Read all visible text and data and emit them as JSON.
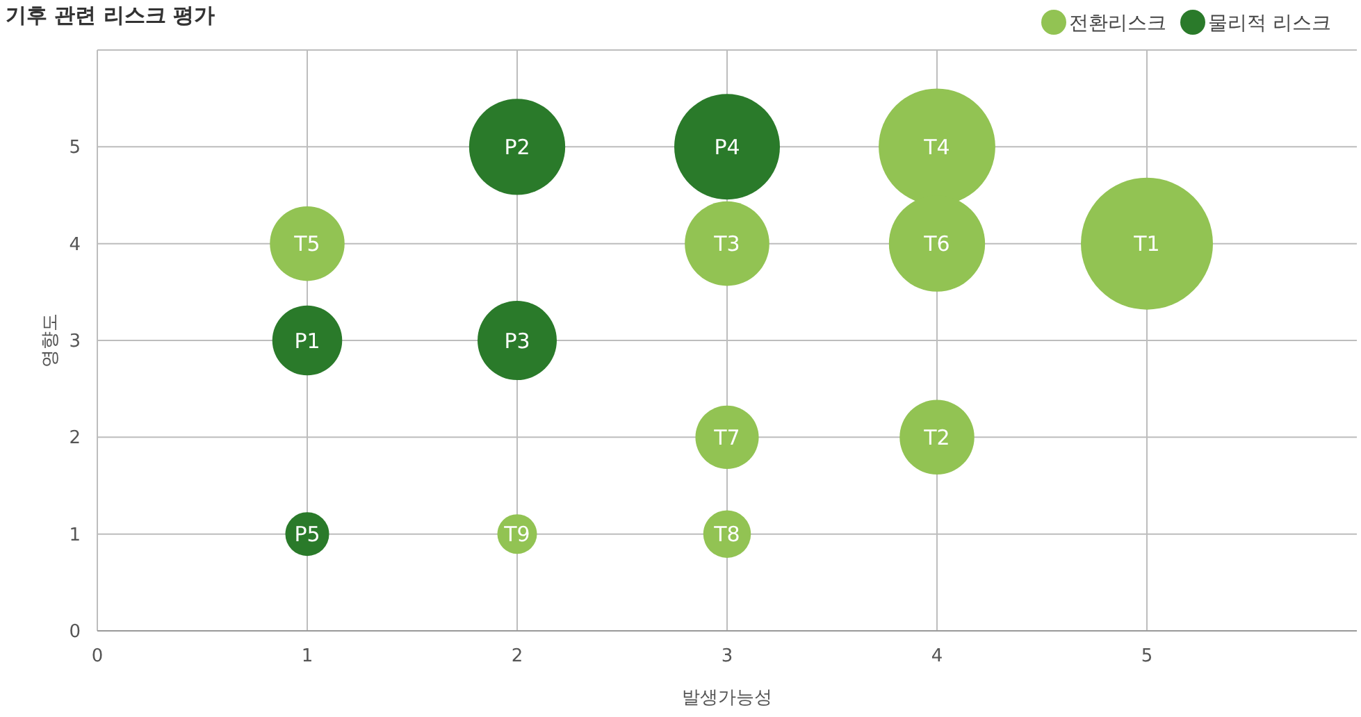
{
  "chart_data": {
    "type": "bubble",
    "title": "기후 관련 리스크 평가",
    "xlabel": "발생가능성",
    "ylabel": "영향도",
    "xlim": [
      0,
      6
    ],
    "xticks": [
      0,
      1,
      2,
      3,
      4,
      5
    ],
    "ylim": [
      0,
      6
    ],
    "yticks": [
      0,
      1,
      2,
      3,
      4,
      5
    ],
    "grid": true,
    "legend": "top right",
    "series": [
      {
        "name": "전환리스크",
        "color": "#92c353",
        "x": [
          5,
          4,
          3,
          4,
          1,
          4,
          3,
          3,
          2
        ],
        "values": [
          4,
          2,
          4,
          5,
          4,
          4,
          2,
          1,
          1
        ],
        "sizes": [
          1,
          0.32,
          0.41,
          0.78,
          0.32,
          0.53,
          0.23,
          0.13,
          0.09
        ]
      },
      {
        "name": "물리적 리스크",
        "color": "#2a7a2a",
        "x": [
          1,
          2,
          2,
          3,
          1
        ],
        "values": [
          3,
          5,
          3,
          5,
          1
        ],
        "sizes": [
          0.28,
          0.53,
          0.36,
          0.64,
          0.11
        ]
      }
    ],
    "annotations": [
      {
        "text": "T1",
        "x": 5,
        "y": 4
      },
      {
        "text": "T2",
        "x": 4,
        "y": 2
      },
      {
        "text": "T3",
        "x": 3,
        "y": 4
      },
      {
        "text": "T4",
        "x": 4,
        "y": 5
      },
      {
        "text": "T5",
        "x": 1,
        "y": 4
      },
      {
        "text": "T6",
        "x": 4,
        "y": 4
      },
      {
        "text": "T7",
        "x": 3,
        "y": 2
      },
      {
        "text": "T8",
        "x": 3,
        "y": 1
      },
      {
        "text": "T9",
        "x": 2,
        "y": 1
      },
      {
        "text": "P1",
        "x": 1,
        "y": 3
      },
      {
        "text": "P2",
        "x": 2,
        "y": 5
      },
      {
        "text": "P3",
        "x": 2,
        "y": 3
      },
      {
        "text": "P4",
        "x": 3,
        "y": 5
      },
      {
        "text": "P5",
        "x": 1,
        "y": 1
      }
    ]
  }
}
